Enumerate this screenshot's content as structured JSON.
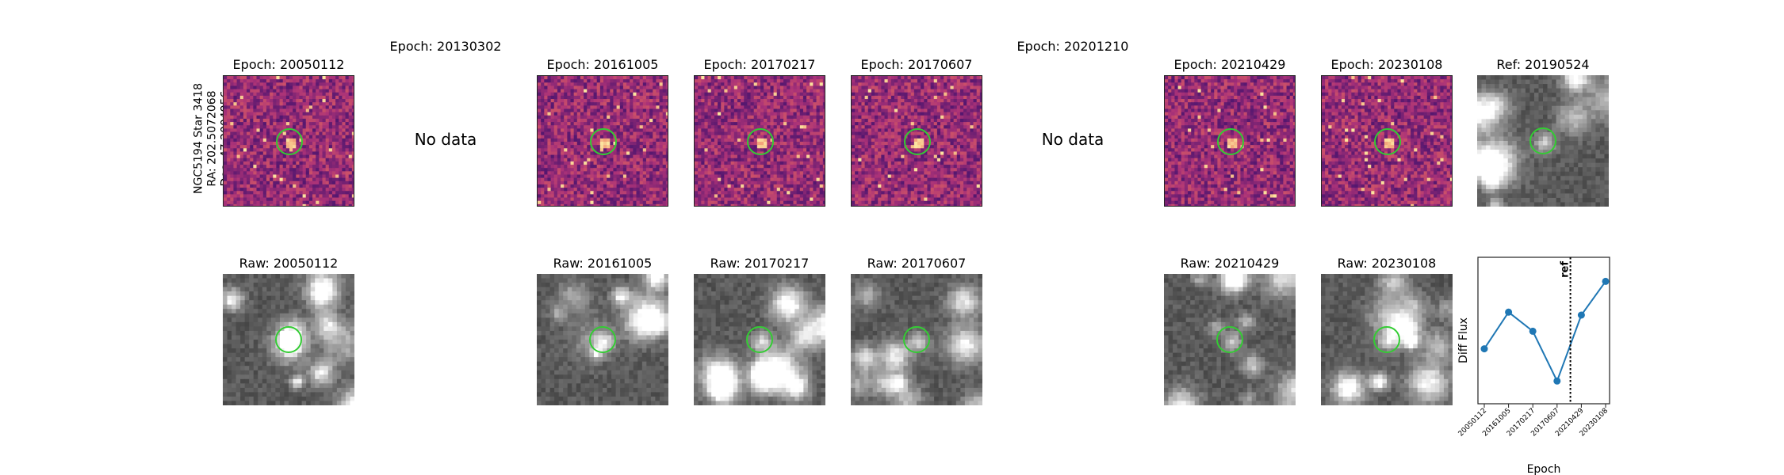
{
  "row_label": {
    "name": "NGC5194 Star 3418",
    "ra": "RA: 202.5072068",
    "dec": "Dec: 47.2004956"
  },
  "diff_row": [
    {
      "title": "Epoch: 20050112",
      "has_data": true
    },
    {
      "title": "Epoch: 20130302",
      "has_data": false
    },
    {
      "title": "Epoch: 20161005",
      "has_data": true
    },
    {
      "title": "Epoch: 20170217",
      "has_data": true
    },
    {
      "title": "Epoch: 20170607",
      "has_data": true
    },
    {
      "title": "Epoch: 20201210",
      "has_data": false
    },
    {
      "title": "Epoch: 20210429",
      "has_data": true
    },
    {
      "title": "Epoch: 20230108",
      "has_data": true
    },
    {
      "title": "Ref: 20190524",
      "has_data": true,
      "is_ref": true
    }
  ],
  "no_data_text": "No data",
  "raw_row": [
    {
      "title": "Raw: 20050112"
    },
    {
      "title": "Raw: 20161005"
    },
    {
      "title": "Raw: 20170217"
    },
    {
      "title": "Raw: 20170607"
    },
    {
      "title": "Raw: 20210429"
    },
    {
      "title": "Raw: 20230108"
    }
  ],
  "colors": {
    "ring": "#33cc33",
    "series": "#1f77b4"
  },
  "chart_data": {
    "type": "line",
    "title": "",
    "xlabel": "Epoch",
    "ylabel": "Diff Flux",
    "categories": [
      "20050112",
      "20161005",
      "20170217",
      "20170607",
      "20210429",
      "20230108"
    ],
    "values": [
      -0.5,
      0.75,
      0.1,
      -1.6,
      0.65,
      1.8
    ],
    "ref_line": {
      "label": "ref",
      "position_between": [
        "20170607",
        "20210429"
      ]
    },
    "y_ticks_shown": false,
    "grid": false
  }
}
